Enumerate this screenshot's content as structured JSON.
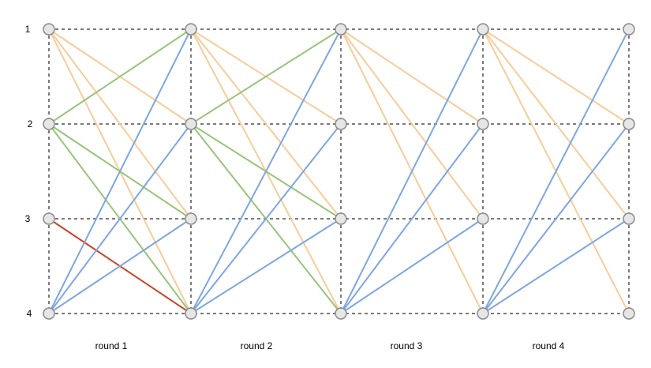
{
  "row_labels": [
    "1",
    "2",
    "3",
    "4"
  ],
  "round_labels": [
    "round 1",
    "round 2",
    "round 3",
    "round 4"
  ],
  "colors": {
    "orange": "#f8cc9a",
    "green": "#98c47a",
    "blue": "#7ea6e0",
    "red": "#c9442a",
    "grid": "#7a7a7a",
    "node_fill": "#e6e6e6",
    "node_stroke": "#8a8a8a"
  },
  "edges": [
    {
      "from": [
        0,
        1
      ],
      "to": [
        1,
        2
      ],
      "color": "orange"
    },
    {
      "from": [
        0,
        1
      ],
      "to": [
        1,
        3
      ],
      "color": "orange"
    },
    {
      "from": [
        0,
        1
      ],
      "to": [
        1,
        4
      ],
      "color": "orange"
    },
    {
      "from": [
        0,
        2
      ],
      "to": [
        1,
        1
      ],
      "color": "green"
    },
    {
      "from": [
        0,
        2
      ],
      "to": [
        1,
        3
      ],
      "color": "green"
    },
    {
      "from": [
        0,
        2
      ],
      "to": [
        1,
        4
      ],
      "color": "green"
    },
    {
      "from": [
        0,
        3
      ],
      "to": [
        1,
        4
      ],
      "color": "red"
    },
    {
      "from": [
        0,
        4
      ],
      "to": [
        1,
        1
      ],
      "color": "blue"
    },
    {
      "from": [
        0,
        4
      ],
      "to": [
        1,
        2
      ],
      "color": "blue"
    },
    {
      "from": [
        0,
        4
      ],
      "to": [
        1,
        3
      ],
      "color": "blue"
    },
    {
      "from": [
        1,
        1
      ],
      "to": [
        2,
        2
      ],
      "color": "orange"
    },
    {
      "from": [
        1,
        1
      ],
      "to": [
        2,
        3
      ],
      "color": "orange"
    },
    {
      "from": [
        1,
        1
      ],
      "to": [
        2,
        4
      ],
      "color": "orange"
    },
    {
      "from": [
        1,
        2
      ],
      "to": [
        2,
        1
      ],
      "color": "green"
    },
    {
      "from": [
        1,
        2
      ],
      "to": [
        2,
        3
      ],
      "color": "green"
    },
    {
      "from": [
        1,
        2
      ],
      "to": [
        2,
        4
      ],
      "color": "green"
    },
    {
      "from": [
        1,
        4
      ],
      "to": [
        2,
        1
      ],
      "color": "blue"
    },
    {
      "from": [
        1,
        4
      ],
      "to": [
        2,
        2
      ],
      "color": "blue"
    },
    {
      "from": [
        1,
        4
      ],
      "to": [
        2,
        3
      ],
      "color": "blue"
    },
    {
      "from": [
        2,
        1
      ],
      "to": [
        3,
        2
      ],
      "color": "orange"
    },
    {
      "from": [
        2,
        1
      ],
      "to": [
        3,
        3
      ],
      "color": "orange"
    },
    {
      "from": [
        2,
        1
      ],
      "to": [
        3,
        4
      ],
      "color": "orange"
    },
    {
      "from": [
        2,
        4
      ],
      "to": [
        3,
        1
      ],
      "color": "blue"
    },
    {
      "from": [
        2,
        4
      ],
      "to": [
        3,
        2
      ],
      "color": "blue"
    },
    {
      "from": [
        2,
        4
      ],
      "to": [
        3,
        3
      ],
      "color": "blue"
    },
    {
      "from": [
        3,
        1
      ],
      "to": [
        4,
        2
      ],
      "color": "orange"
    },
    {
      "from": [
        3,
        1
      ],
      "to": [
        4,
        3
      ],
      "color": "orange"
    },
    {
      "from": [
        3,
        1
      ],
      "to": [
        4,
        4
      ],
      "color": "orange"
    },
    {
      "from": [
        3,
        4
      ],
      "to": [
        4,
        1
      ],
      "color": "blue"
    },
    {
      "from": [
        3,
        4
      ],
      "to": [
        4,
        2
      ],
      "color": "blue"
    },
    {
      "from": [
        3,
        4
      ],
      "to": [
        4,
        3
      ],
      "color": "blue"
    }
  ]
}
